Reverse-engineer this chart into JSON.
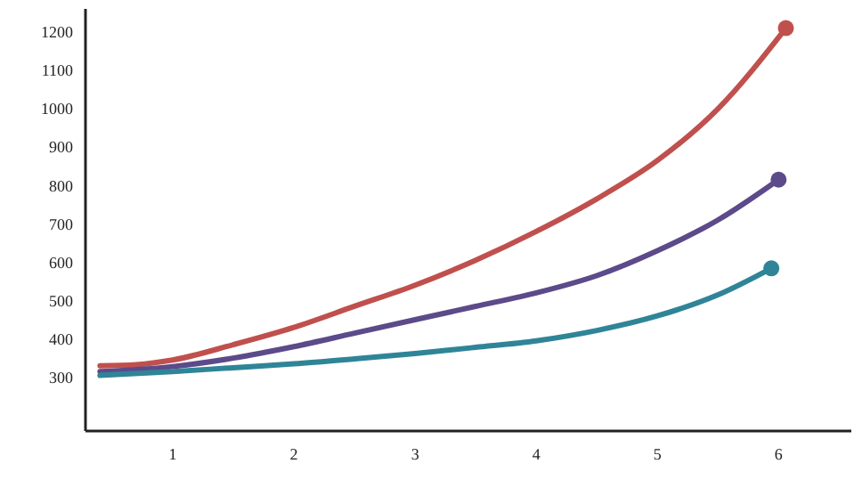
{
  "chart_data": {
    "type": "line",
    "xlim": [
      0.28,
      6.6
    ],
    "xticks": [
      1,
      2,
      3,
      4,
      5,
      6
    ],
    "ylim": [
      160,
      1260
    ],
    "yticks": [
      300,
      400,
      500,
      600,
      700,
      800,
      900,
      1000,
      1100,
      1200
    ],
    "grid": false,
    "series": [
      {
        "color": "#c0504d",
        "x": [
          0.4,
          0.7,
          1,
          1.5,
          2,
          2.5,
          3,
          3.5,
          4,
          4.5,
          5,
          5.5,
          6.06
        ],
        "values": [
          330,
          333,
          345,
          385,
          430,
          485,
          540,
          605,
          680,
          765,
          865,
          1000,
          1210
        ]
      },
      {
        "color": "#5c4a8a",
        "x": [
          0.4,
          1,
          1.5,
          2,
          2.5,
          3,
          3.5,
          4,
          4.5,
          5,
          5.5,
          6
        ],
        "values": [
          315,
          328,
          350,
          380,
          415,
          450,
          485,
          520,
          565,
          630,
          710,
          815
        ]
      },
      {
        "color": "#2f8597",
        "x": [
          0.4,
          1,
          1.5,
          2,
          2.5,
          3,
          3.5,
          4,
          4.5,
          5,
          5.5,
          5.94
        ],
        "values": [
          305,
          315,
          325,
          335,
          348,
          362,
          378,
          395,
          422,
          460,
          515,
          584
        ]
      },
      {
        "type": "scatter",
        "color": "#c0504d",
        "x": [
          6.06
        ],
        "values": [
          1210
        ]
      },
      {
        "type": "scatter",
        "color": "#5c4a8a",
        "x": [
          6
        ],
        "values": [
          815
        ]
      },
      {
        "type": "scatter",
        "color": "#2f8597",
        "x": [
          5.94
        ],
        "values": [
          584
        ]
      }
    ]
  }
}
